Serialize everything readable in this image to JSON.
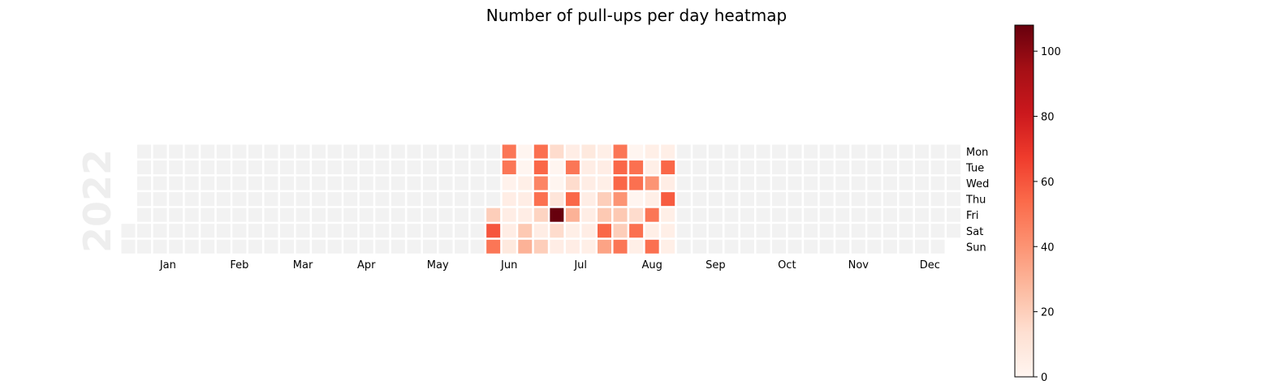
{
  "chart_data": {
    "type": "heatmap",
    "title": "Number of pull-ups per day heatmap",
    "year": "2022",
    "start_date": "2022-01-01",
    "weekday_labels": [
      "Mon",
      "Tue",
      "Wed",
      "Thu",
      "Fri",
      "Sat",
      "Sun"
    ],
    "month_labels": [
      "Jan",
      "Feb",
      "Mar",
      "Apr",
      "May",
      "Jun",
      "Jul",
      "Aug",
      "Sep",
      "Oct",
      "Nov",
      "Dec"
    ],
    "colorbar": {
      "range": [
        0,
        108
      ],
      "ticks": [
        "0",
        "20",
        "40",
        "60",
        "80",
        "100"
      ],
      "colormap": "Reds",
      "colors": [
        "#fff5f0",
        "#fee0d2",
        "#fcbba1",
        "#fc9272",
        "#fb6a4a",
        "#ef3b2c",
        "#cb181d",
        "#a50f15",
        "#67000d"
      ]
    },
    "empty_color": "#f2f2f2",
    "daily_values": {
      "2022-06-10": 20,
      "2022-06-11": 60,
      "2022-06-12": 50,
      "2022-06-13": 50,
      "2022-06-14": 50,
      "2022-06-15": 2,
      "2022-06-16": 5,
      "2022-06-17": 5,
      "2022-06-18": 5,
      "2022-06-19": 8,
      "2022-06-20": 0,
      "2022-06-21": 0,
      "2022-06-22": 4,
      "2022-06-23": 5,
      "2022-06-24": 5,
      "2022-06-25": 22,
      "2022-06-26": 30,
      "2022-06-27": 52,
      "2022-06-28": 55,
      "2022-06-29": 45,
      "2022-06-30": 52,
      "2022-07-01": 18,
      "2022-07-02": 5,
      "2022-07-03": 20,
      "2022-07-04": 15,
      "2022-07-05": 0,
      "2022-07-06": 0,
      "2022-07-07": 10,
      "2022-07-08": 108,
      "2022-07-09": 15,
      "2022-07-10": 5,
      "2022-07-11": 5,
      "2022-07-12": 50,
      "2022-07-13": 15,
      "2022-07-14": 55,
      "2022-07-15": 30,
      "2022-07-16": 4,
      "2022-07-17": 5,
      "2022-07-18": 8,
      "2022-07-19": 5,
      "2022-07-20": 5,
      "2022-07-21": 5,
      "2022-07-22": 5,
      "2022-07-23": 5,
      "2022-07-24": 4,
      "2022-07-25": 4,
      "2022-07-26": 5,
      "2022-07-27": 4,
      "2022-07-28": 20,
      "2022-07-29": 22,
      "2022-07-30": 55,
      "2022-07-31": 35,
      "2022-08-01": 50,
      "2022-08-02": 55,
      "2022-08-03": 55,
      "2022-08-04": 40,
      "2022-08-05": 22,
      "2022-08-06": 20,
      "2022-08-07": 50,
      "2022-08-08": 0,
      "2022-08-09": 52,
      "2022-08-10": 52,
      "2022-08-11": 0,
      "2022-08-12": 15,
      "2022-08-13": 52,
      "2022-08-14": 4,
      "2022-08-15": 4,
      "2022-08-16": 4,
      "2022-08-17": 40,
      "2022-08-18": 4,
      "2022-08-19": 50,
      "2022-08-20": 4,
      "2022-08-21": 52,
      "2022-08-22": 4,
      "2022-08-23": 55,
      "2022-08-24": 5,
      "2022-08-25": 58,
      "2022-08-26": 4,
      "2022-08-27": 4,
      "2022-08-28": 4
    }
  }
}
